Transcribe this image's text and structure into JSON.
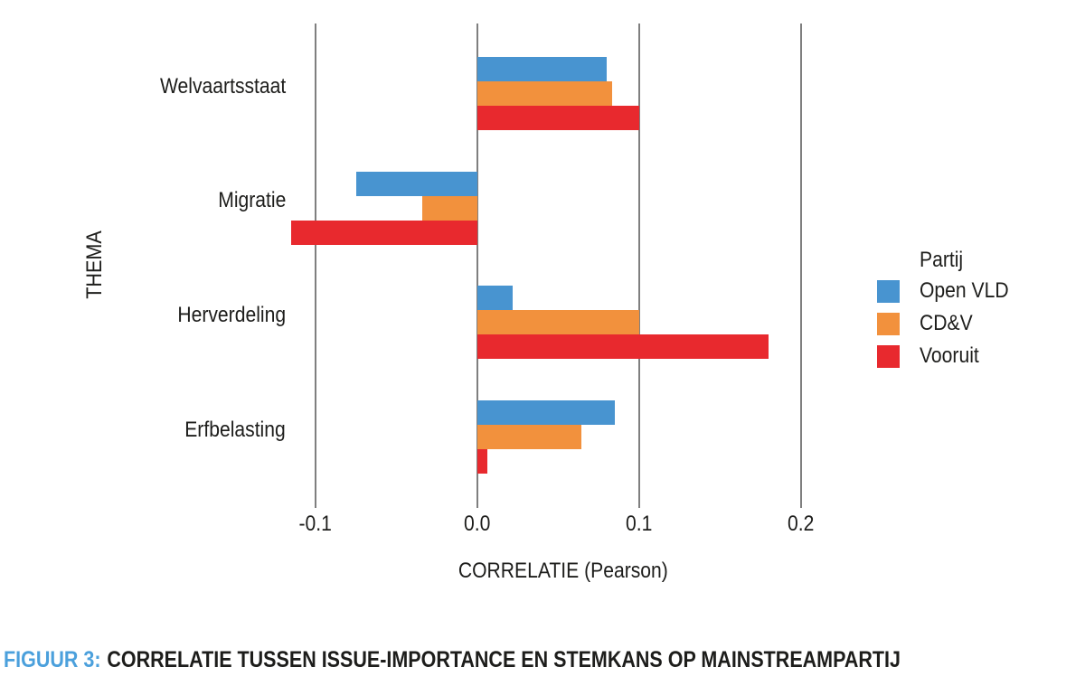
{
  "figure": {
    "caption_prefix": "FIGUUR 3:",
    "caption_text": "CORRELATIE TUSSEN ISSUE-IMPORTANCE EN STEMKANS OP MAINSTREAMPARTIJ",
    "caption_prefix_color": "#4BA0DC",
    "caption_text_color": "#1d1d1b"
  },
  "chart_data": {
    "type": "bar",
    "orientation": "horizontal",
    "title": "",
    "xlabel": "CORRELATIE (Pearson)",
    "ylabel": "THEMA",
    "xlim": [
      -0.145,
      0.225
    ],
    "x_ticks": [
      -0.1,
      0.0,
      0.1,
      0.2
    ],
    "x_tick_labels": [
      "-0.1",
      "0.0",
      "0.1",
      "0.2"
    ],
    "grid": "vertical-gridlines-at-ticks",
    "gridline_color": "#7f7f7f",
    "categories": [
      "Welvaartsstaat",
      "Migratie",
      "Herverdeling",
      "Erfbelasting"
    ],
    "series": [
      {
        "name": "Open VLD",
        "color": "#4894D0",
        "values": [
          0.08,
          -0.075,
          0.022,
          0.085
        ]
      },
      {
        "name": "CD&V",
        "color": "#F2913D",
        "values": [
          0.083,
          -0.034,
          0.1,
          0.064
        ]
      },
      {
        "name": "Vooruit",
        "color": "#E8292E",
        "values": [
          0.1,
          -0.115,
          0.18,
          0.006
        ]
      }
    ],
    "legend": {
      "title": "Partij",
      "position": "right"
    }
  }
}
